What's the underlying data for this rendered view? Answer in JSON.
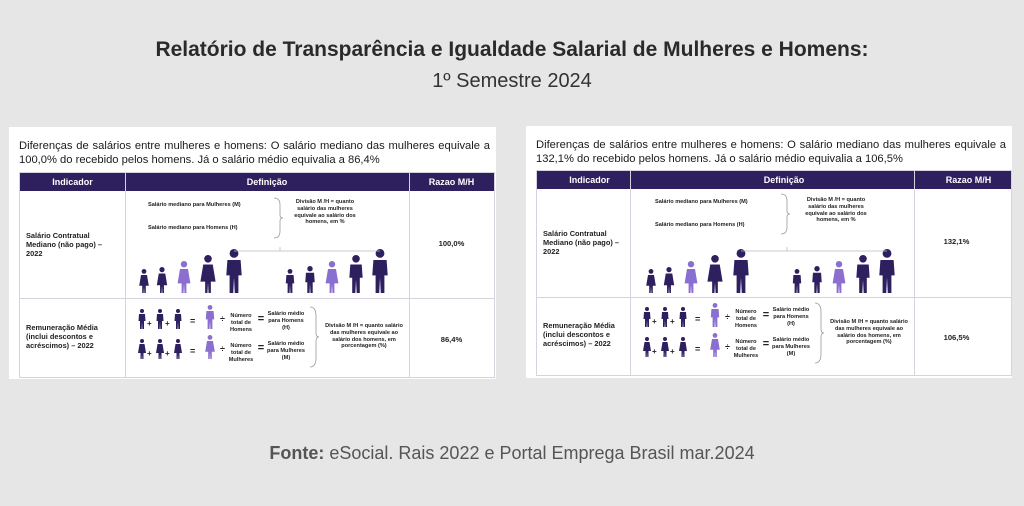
{
  "header": {
    "title": "Relatório de Transparência e Igualdade Salarial de Mulheres e Homens:",
    "subtitle": "1º Semestre 2024"
  },
  "colors": {
    "dark_purple": "#2e1f5e",
    "light_purple": "#8a6fd0"
  },
  "table_headers": {
    "indicator": "Indicador",
    "definition": "Definição",
    "ratio": "Razao M/H"
  },
  "row_labels": {
    "median": "Salário Contratual Mediano (não pago) – 2022",
    "mean": "Remuneração Média (inclui descontos e acréscimos) – 2022"
  },
  "median_def": {
    "women": "Salário mediano para Mulheres (M)",
    "men": "Salário mediano para Homens (H)",
    "division": "Divisão M /H = quanto salário das mulheres equivale ao salário dos homens, em %"
  },
  "mean_def": {
    "total_men": "Número total de Homens",
    "total_women": "Número total de Mulheres",
    "avg_men": "Salário médio para Homens (H)",
    "avg_women": "Salário médio para Mulheres (M)",
    "division": "Divisão M /H = quanto salário das mulheres equivale ao salário dos homens, em porcentagem (%)"
  },
  "panels": [
    {
      "intro": "Diferenças de salários entre mulheres e homens: O salário mediano das mulheres equivale a 100,0% do recebido pelos homens. Já o salário médio equivalia a 86,4%",
      "median_ratio": "100,0%",
      "mean_ratio": "86,4%"
    },
    {
      "intro": "Diferenças de salários entre mulheres e homens: O salário mediano das mulheres equivale a 132,1% do recebido pelos homens. Já o salário médio equivalia a 106,5%",
      "median_ratio": "132,1%",
      "mean_ratio": "106,5%"
    }
  ],
  "source": {
    "label": "Fonte:",
    "text": "eSocial. Rais 2022 e Portal Emprega Brasil mar.2024"
  }
}
